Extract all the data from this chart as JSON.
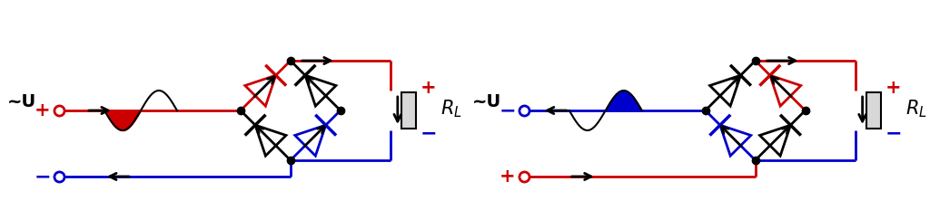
{
  "fig_width": 10.24,
  "fig_height": 2.43,
  "bg_color": "#ffffff",
  "red": "#cc0000",
  "blue": "#0000cc",
  "black": "#000000"
}
